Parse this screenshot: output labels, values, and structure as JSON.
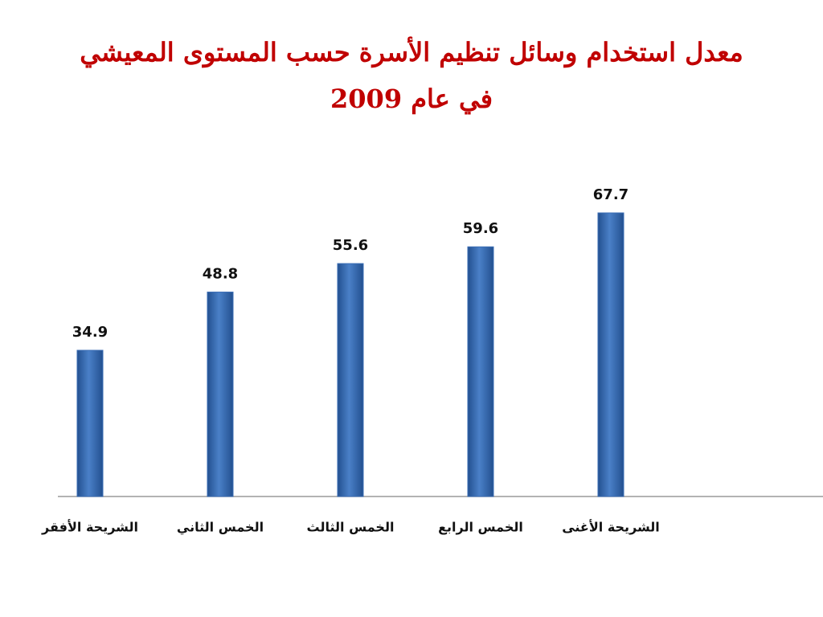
{
  "chart_data": {
    "type": "bar",
    "title": "معدل استخدام وسائل تنظيم الأسرة حسب المستوى المعيشي في عام 2009",
    "categories": [
      "الشريحة الأفقر",
      "الخمس الثاني",
      "الخمس الثالث",
      "الخمس الرابع",
      "الشريحة الأغنى"
    ],
    "values": [
      34.9,
      48.8,
      55.6,
      59.6,
      67.7
    ],
    "color": "#3a6db5",
    "ylim": [
      0,
      70
    ],
    "grid": false
  }
}
